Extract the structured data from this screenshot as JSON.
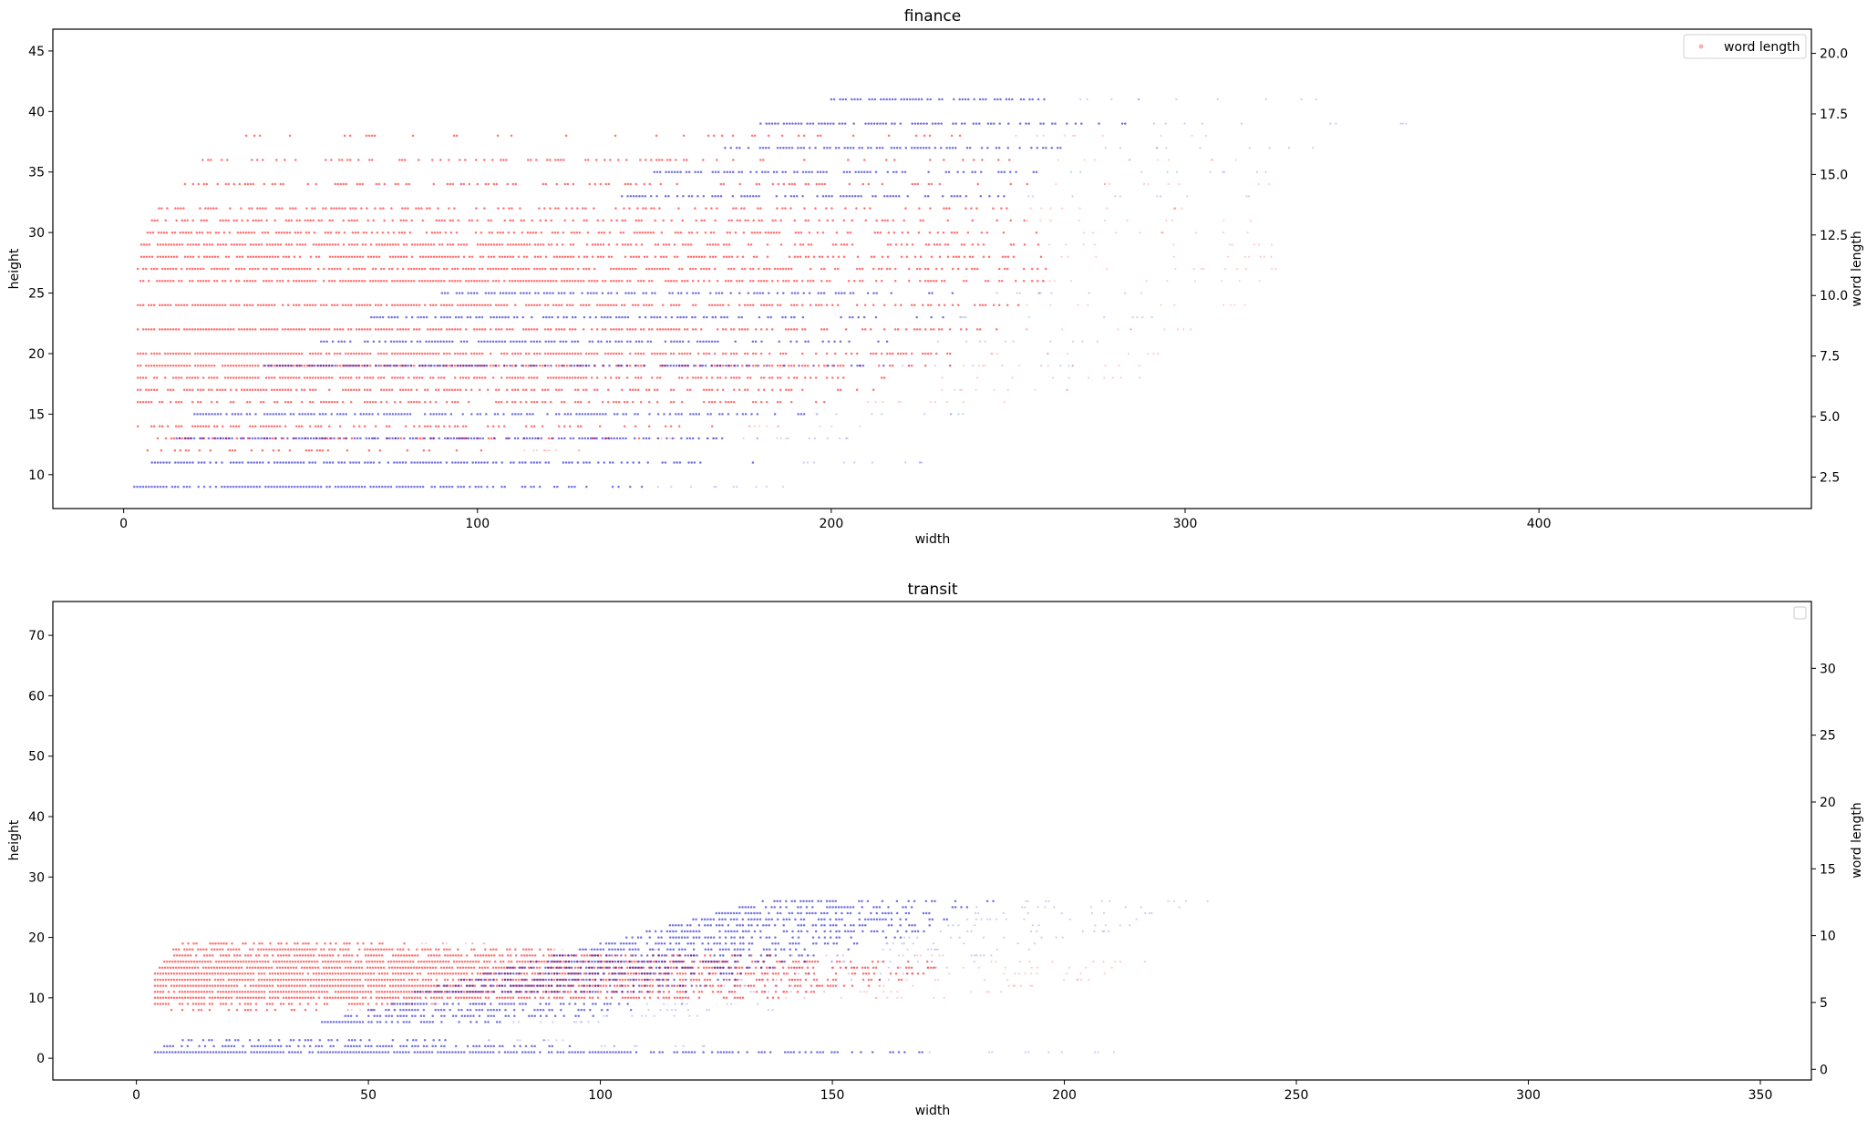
{
  "chart_data": [
    {
      "type": "scatter",
      "title": "finance",
      "xlabel": "width",
      "ylabel": "height",
      "y2label": "word length",
      "xlim": [
        -20,
        477
      ],
      "ylim": [
        7.2,
        46.8
      ],
      "y2lim": [
        1.2,
        21.0
      ],
      "xticks": [
        0,
        100,
        200,
        300,
        400
      ],
      "yticks": [
        10,
        15,
        20,
        25,
        30,
        35,
        40,
        45
      ],
      "y2ticks": [
        "2.5",
        "5.0",
        "7.5",
        "10.0",
        "12.5",
        "15.0",
        "17.5",
        "20.0"
      ],
      "legend": {
        "entries": [
          "word length"
        ],
        "location": "top-right"
      },
      "grid": false,
      "series": [
        {
          "name": "height",
          "axis": "left",
          "color": "#ff0000",
          "rows": [
            {
              "y": 12,
              "x_min": 6,
              "x_max": 110,
              "density": 0.35
            },
            {
              "y": 13,
              "x_min": 5,
              "x_max": 150,
              "density": 0.45
            },
            {
              "y": 14,
              "x_min": 4,
              "x_max": 170,
              "density": 0.5
            },
            {
              "y": 16,
              "x_min": 4,
              "x_max": 200,
              "density": 0.6
            },
            {
              "y": 17,
              "x_min": 4,
              "x_max": 215,
              "density": 0.7
            },
            {
              "y": 18,
              "x_min": 4,
              "x_max": 230,
              "density": 0.8
            },
            {
              "y": 19,
              "x_min": 4,
              "x_max": 235,
              "density": 0.85
            },
            {
              "y": 20,
              "x_min": 4,
              "x_max": 240,
              "density": 0.9
            },
            {
              "y": 22,
              "x_min": 4,
              "x_max": 250,
              "density": 0.9
            },
            {
              "y": 24,
              "x_min": 4,
              "x_max": 255,
              "density": 0.9
            },
            {
              "y": 26,
              "x_min": 4,
              "x_max": 260,
              "density": 0.85
            },
            {
              "y": 27,
              "x_min": 4,
              "x_max": 262,
              "density": 0.8
            },
            {
              "y": 28,
              "x_min": 5,
              "x_max": 262,
              "density": 0.8
            },
            {
              "y": 29,
              "x_min": 5,
              "x_max": 260,
              "density": 0.75
            },
            {
              "y": 30,
              "x_min": 6,
              "x_max": 258,
              "density": 0.6
            },
            {
              "y": 31,
              "x_min": 8,
              "x_max": 255,
              "density": 0.55
            },
            {
              "y": 32,
              "x_min": 10,
              "x_max": 250,
              "density": 0.5
            },
            {
              "y": 34,
              "x_min": 15,
              "x_max": 260,
              "density": 0.4
            },
            {
              "y": 36,
              "x_min": 20,
              "x_max": 255,
              "density": 0.3
            },
            {
              "y": 38,
              "x_min": 30,
              "x_max": 250,
              "density": 0.2
            }
          ]
        },
        {
          "name": "word length",
          "axis": "right",
          "color": "#0000cc",
          "rows": [
            {
              "y": 9,
              "x_min": 3,
              "x_max": 150,
              "density": 0.9
            },
            {
              "y": 11,
              "x_min": 8,
              "x_max": 185,
              "density": 0.8
            },
            {
              "y": 13,
              "x_min": 15,
              "x_max": 175,
              "density": 0.75
            },
            {
              "y": 15,
              "x_min": 20,
              "x_max": 195,
              "density": 0.75
            },
            {
              "y": 19,
              "x_min": 40,
              "x_max": 215,
              "density": 0.7
            },
            {
              "y": 21,
              "x_min": 55,
              "x_max": 225,
              "density": 0.7
            },
            {
              "y": 23,
              "x_min": 70,
              "x_max": 235,
              "density": 0.7
            },
            {
              "y": 25,
              "x_min": 90,
              "x_max": 240,
              "density": 0.7
            },
            {
              "y": 33,
              "x_min": 140,
              "x_max": 255,
              "density": 0.7
            },
            {
              "y": 35,
              "x_min": 150,
              "x_max": 265,
              "density": 0.7
            },
            {
              "y": 37,
              "x_min": 170,
              "x_max": 270,
              "density": 0.7
            },
            {
              "y": 39,
              "x_min": 180,
              "x_max": 290,
              "density": 0.75
            },
            {
              "y": 41,
              "x_min": 200,
              "x_max": 270,
              "density": 0.8
            }
          ]
        }
      ]
    },
    {
      "type": "scatter",
      "title": "transit",
      "xlabel": "width",
      "ylabel": "height",
      "y2label": "word length",
      "xlim": [
        -18,
        361
      ],
      "ylim": [
        -3.6,
        75.6
      ],
      "y2lim": [
        -0.8,
        35.0
      ],
      "xticks": [
        0,
        50,
        100,
        150,
        200,
        250,
        300,
        350
      ],
      "yticks": [
        0,
        10,
        20,
        30,
        40,
        50,
        60,
        70
      ],
      "y2ticks": [
        "0",
        "5",
        "10",
        "15",
        "20",
        "25",
        "30"
      ],
      "legend": {
        "entries": [
          ""
        ],
        "location": "top-right"
      },
      "grid": false,
      "series": [
        {
          "name": "height",
          "axis": "left",
          "color": "#ff0000",
          "rows": [
            {
              "y": 10,
              "x_min": 4,
              "x_max": 140,
              "density": 0.95
            },
            {
              "y": 11,
              "x_min": 4,
              "x_max": 150,
              "density": 0.95
            },
            {
              "y": 12,
              "x_min": 4,
              "x_max": 160,
              "density": 0.95
            },
            {
              "y": 13,
              "x_min": 4,
              "x_max": 165,
              "density": 0.95
            },
            {
              "y": 14,
              "x_min": 4,
              "x_max": 170,
              "density": 0.95
            },
            {
              "y": 15,
              "x_min": 5,
              "x_max": 172,
              "density": 0.95
            },
            {
              "y": 16,
              "x_min": 6,
              "x_max": 175,
              "density": 0.9
            },
            {
              "y": 17,
              "x_min": 7,
              "x_max": 140,
              "density": 0.85
            },
            {
              "y": 18,
              "x_min": 8,
              "x_max": 90,
              "density": 0.8
            },
            {
              "y": 19,
              "x_min": 10,
              "x_max": 60,
              "density": 0.6
            },
            {
              "y": 9,
              "x_min": 4,
              "x_max": 60,
              "density": 0.6
            },
            {
              "y": 8,
              "x_min": 4,
              "x_max": 45,
              "density": 0.4
            }
          ]
        },
        {
          "name": "word length",
          "axis": "right",
          "color": "#0000cc",
          "rows": [
            {
              "y": 1,
              "x_min": 4,
              "x_max": 170,
              "density": 0.95
            },
            {
              "y": 2,
              "x_min": 6,
              "x_max": 100,
              "density": 0.7
            },
            {
              "y": 3,
              "x_min": 10,
              "x_max": 75,
              "density": 0.5
            },
            {
              "y": 6,
              "x_min": 40,
              "x_max": 80,
              "density": 0.7
            },
            {
              "y": 7,
              "x_min": 45,
              "x_max": 100,
              "density": 0.7
            },
            {
              "y": 8,
              "x_min": 50,
              "x_max": 110,
              "density": 0.7
            },
            {
              "y": 9,
              "x_min": 55,
              "x_max": 110,
              "density": 0.7
            },
            {
              "y": 11,
              "x_min": 60,
              "x_max": 120,
              "density": 0.7
            },
            {
              "y": 12,
              "x_min": 65,
              "x_max": 125,
              "density": 0.7
            },
            {
              "y": 13,
              "x_min": 70,
              "x_max": 130,
              "density": 0.7
            },
            {
              "y": 14,
              "x_min": 75,
              "x_max": 135,
              "density": 0.7
            },
            {
              "y": 15,
              "x_min": 80,
              "x_max": 140,
              "density": 0.7
            },
            {
              "y": 16,
              "x_min": 85,
              "x_max": 145,
              "density": 0.7
            },
            {
              "y": 17,
              "x_min": 90,
              "x_max": 150,
              "density": 0.7
            },
            {
              "y": 18,
              "x_min": 95,
              "x_max": 155,
              "density": 0.7
            },
            {
              "y": 19,
              "x_min": 100,
              "x_max": 160,
              "density": 0.7
            },
            {
              "y": 20,
              "x_min": 105,
              "x_max": 165,
              "density": 0.7
            },
            {
              "y": 21,
              "x_min": 110,
              "x_max": 170,
              "density": 0.7
            },
            {
              "y": 22,
              "x_min": 115,
              "x_max": 175,
              "density": 0.7
            },
            {
              "y": 23,
              "x_min": 120,
              "x_max": 175,
              "density": 0.75
            },
            {
              "y": 24,
              "x_min": 125,
              "x_max": 180,
              "density": 0.7
            },
            {
              "y": 25,
              "x_min": 130,
              "x_max": 180,
              "density": 0.6
            },
            {
              "y": 26,
              "x_min": 135,
              "x_max": 185,
              "density": 0.5
            }
          ]
        }
      ]
    }
  ]
}
